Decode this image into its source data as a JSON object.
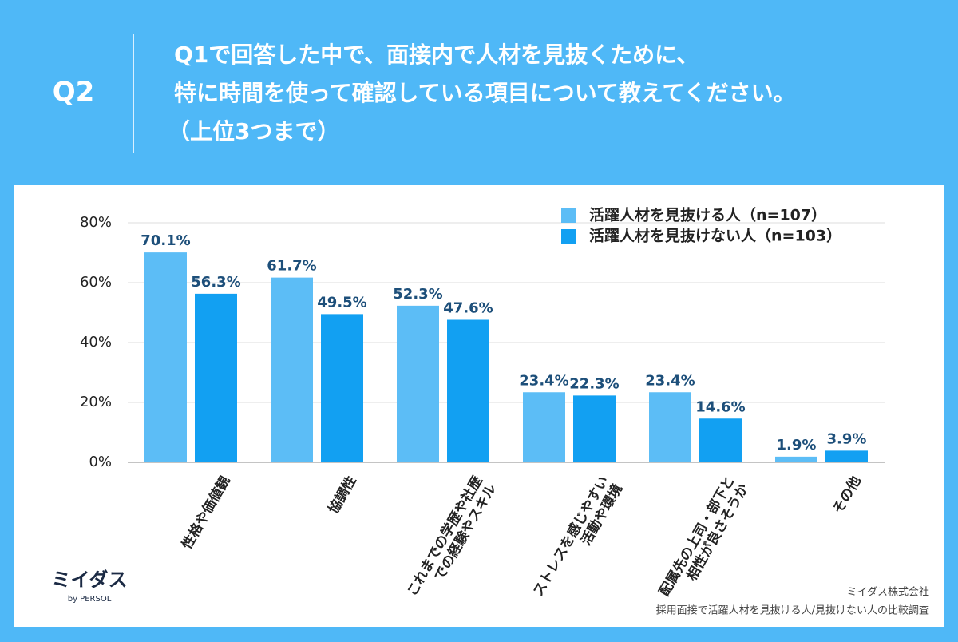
{
  "header": {
    "label": "Q2",
    "question": [
      "Q1で回答した中で、面接内で人材を見抜くために、",
      "特に時間を使って確認している項目について教えてください。",
      "（上位3つまで）"
    ]
  },
  "chart_data": {
    "type": "bar",
    "categories": [
      [
        "性格や価値観"
      ],
      [
        "協調性"
      ],
      [
        "これまでの学歴や社歴",
        "での経験やスキル"
      ],
      [
        "ストレスを感じやすい",
        "活動や環境"
      ],
      [
        "配属先の上司・部下と",
        "相性が良さそうか"
      ],
      [
        "その他"
      ]
    ],
    "series": [
      {
        "name": "活躍人材を見抜ける人（n=107）",
        "color": "#5cbdf6",
        "values": [
          70.1,
          61.7,
          52.3,
          23.4,
          23.4,
          1.9
        ],
        "value_labels": [
          "70.1%",
          "61.7%",
          "52.3%",
          "23.4%",
          "23.4%",
          "1.9%"
        ]
      },
      {
        "name": "活躍人材を見抜けない人（n=103）",
        "color": "#12a0f2",
        "values": [
          56.3,
          49.5,
          47.6,
          22.3,
          14.6,
          3.9
        ],
        "value_labels": [
          "56.3%",
          "49.5%",
          "47.6%",
          "22.3%",
          "14.6%",
          "3.9%"
        ]
      }
    ],
    "ylim": [
      0,
      80
    ],
    "yticks": [
      {
        "value": 0,
        "label": "0%"
      },
      {
        "value": 20,
        "label": "20%"
      },
      {
        "value": 40,
        "label": "40%"
      },
      {
        "value": 60,
        "label": "60%"
      },
      {
        "value": 80,
        "label": "80%"
      }
    ],
    "grid": true,
    "legend": "upper right"
  },
  "footer": {
    "logo": "ミイダス",
    "logo_sub": "by PERSOL",
    "company": "ミイダス株式会社",
    "survey": "採用面接で活躍人材を見抜ける人/見抜けない人の比較調査"
  }
}
